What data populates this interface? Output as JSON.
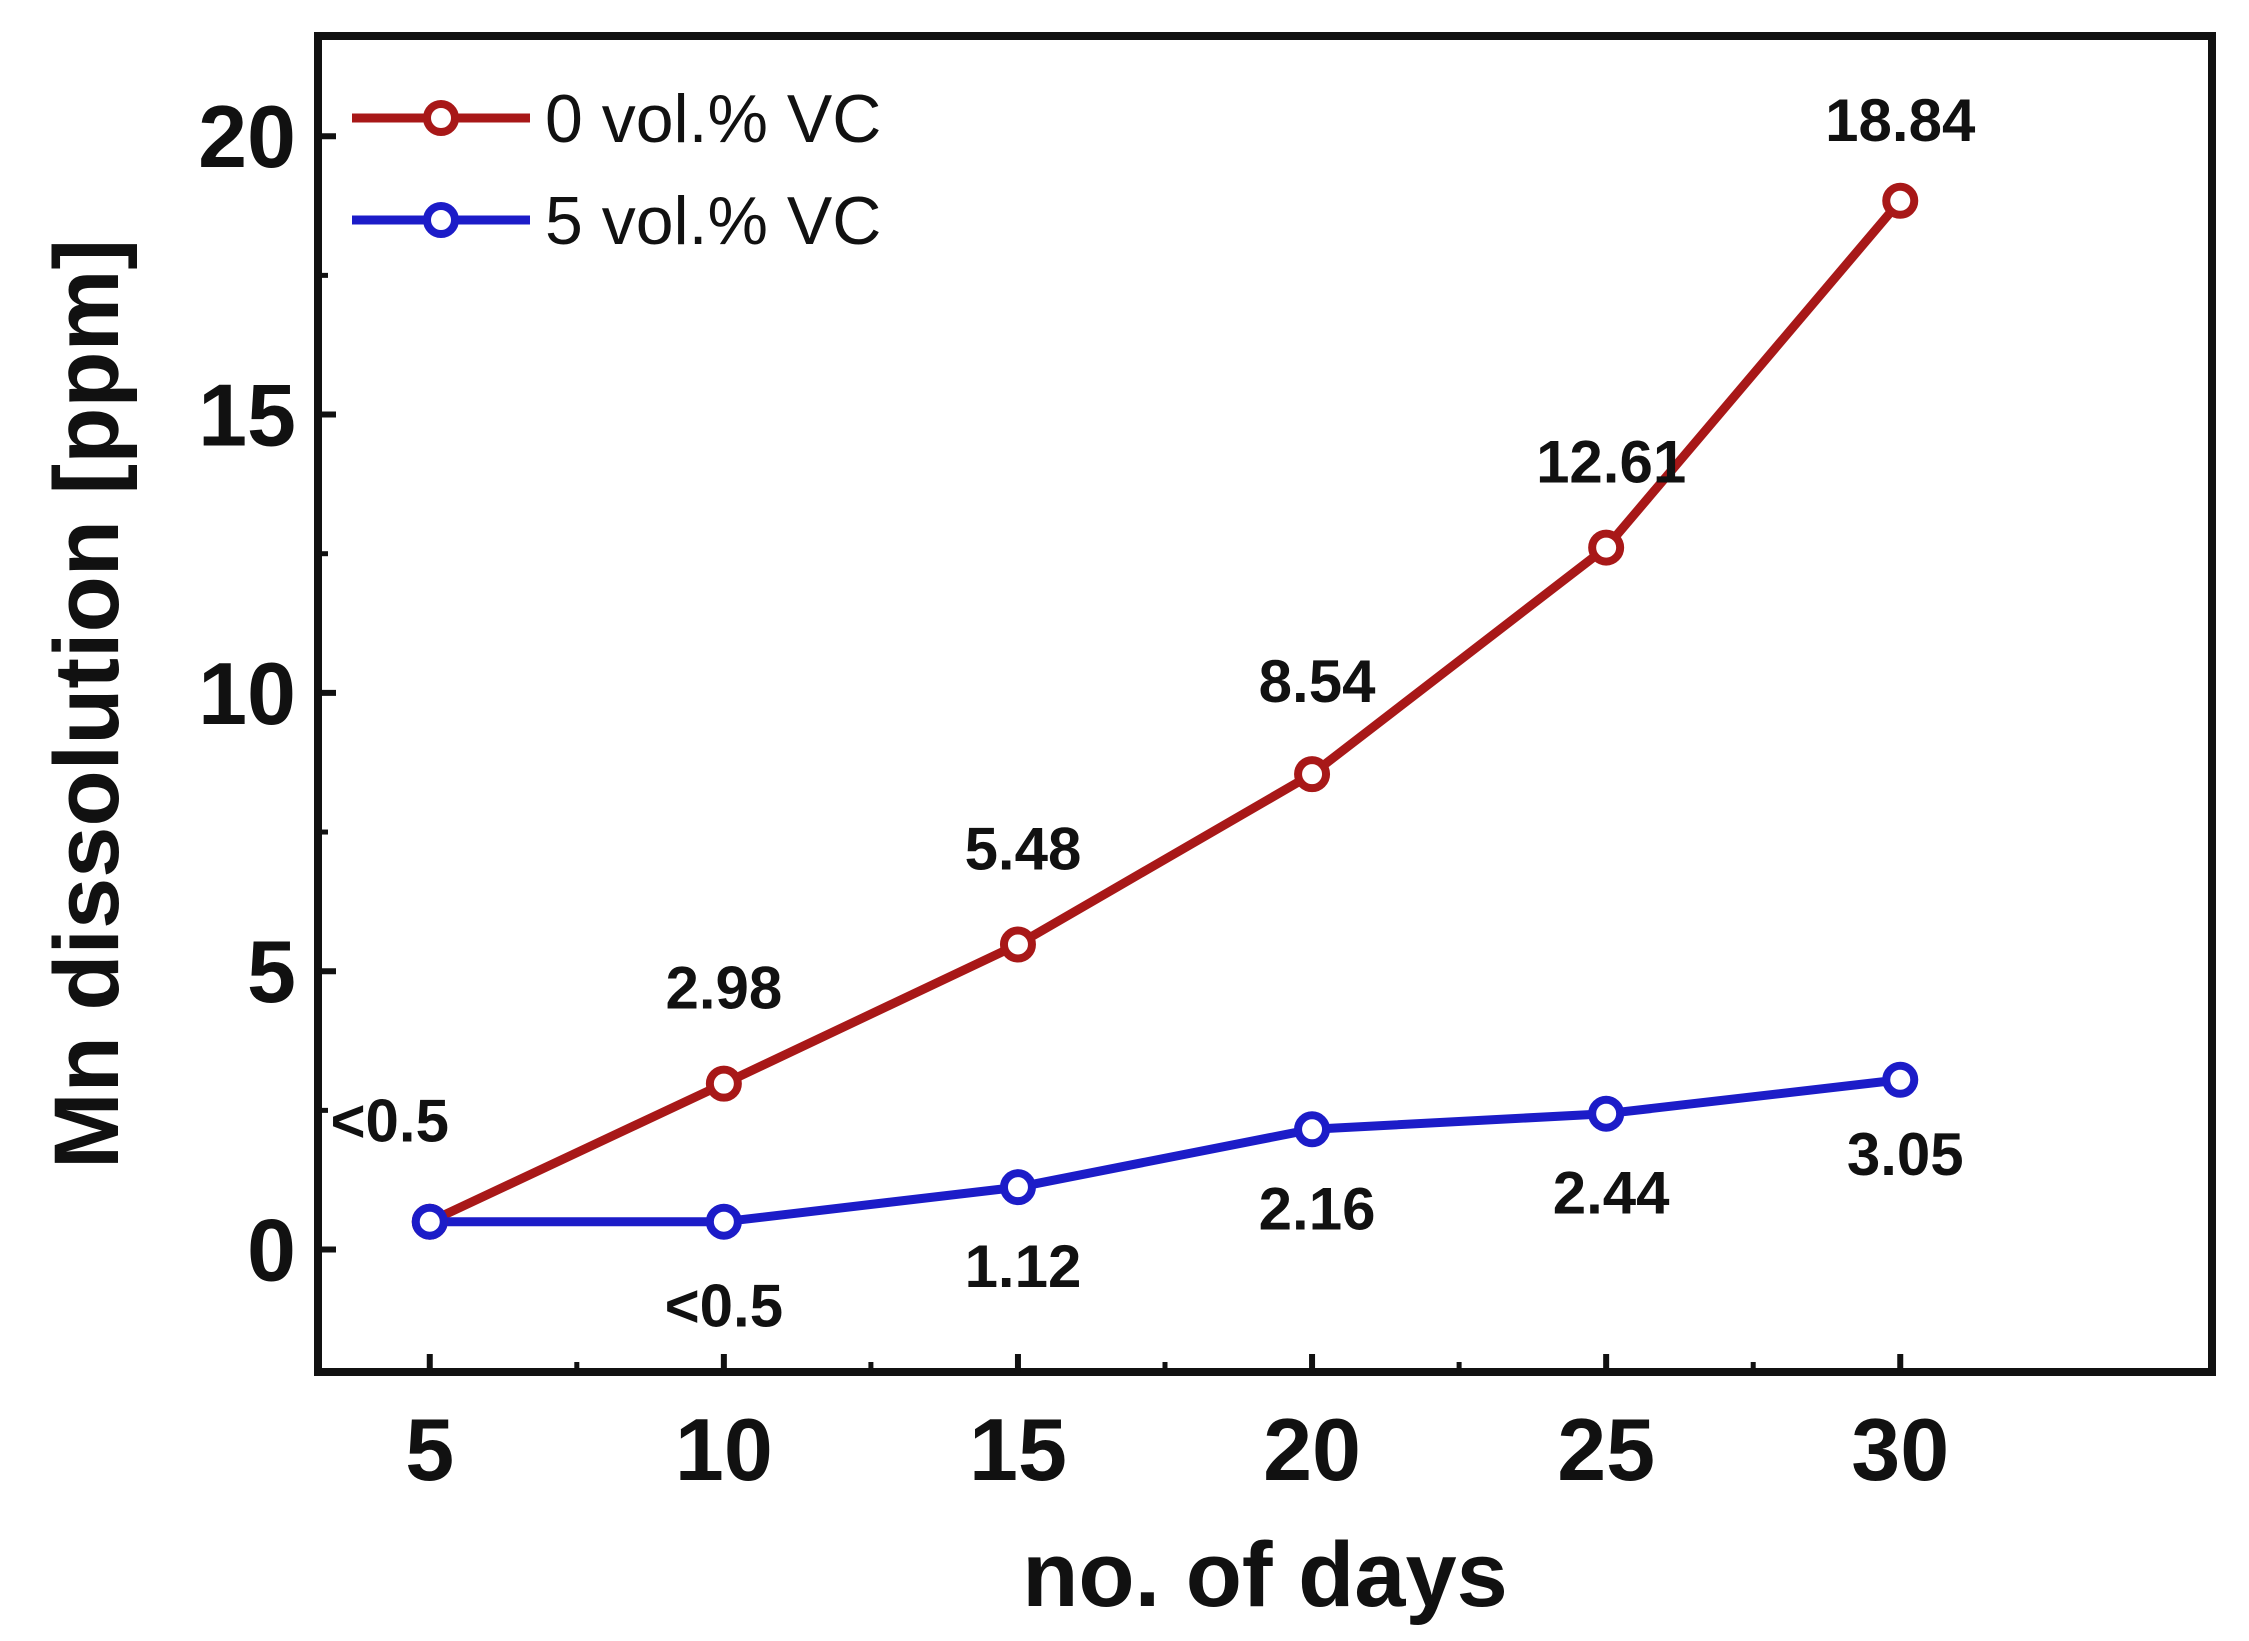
{
  "chart_data": {
    "type": "line",
    "title": "",
    "xlabel": "no. of days",
    "ylabel": "Mn dissolution [ppm]",
    "x": [
      5,
      10,
      15,
      20,
      25,
      30
    ],
    "xlim": [
      3.1,
      35.3
    ],
    "ylim": [
      -2.2,
      21.8
    ],
    "xticks": [
      5,
      10,
      15,
      20,
      25,
      30
    ],
    "yticks": [
      0,
      5,
      10,
      15,
      20
    ],
    "grid": false,
    "legend": "top-left",
    "series": [
      {
        "name": "0 vol.% VC",
        "color": "#a81818",
        "values": [
          0.5,
          2.98,
          5.48,
          8.54,
          12.61,
          18.84
        ],
        "labels": [
          "<0.5",
          "2.98",
          "5.48",
          "8.54",
          "12.61",
          "18.84"
        ]
      },
      {
        "name": "5 vol.% VC",
        "color": "#1c1cc8",
        "values": [
          0.5,
          0.5,
          1.12,
          2.16,
          2.44,
          3.05
        ],
        "labels": [
          "",
          "<0.5",
          "1.12",
          "2.16",
          "2.44",
          "3.05"
        ]
      }
    ]
  }
}
